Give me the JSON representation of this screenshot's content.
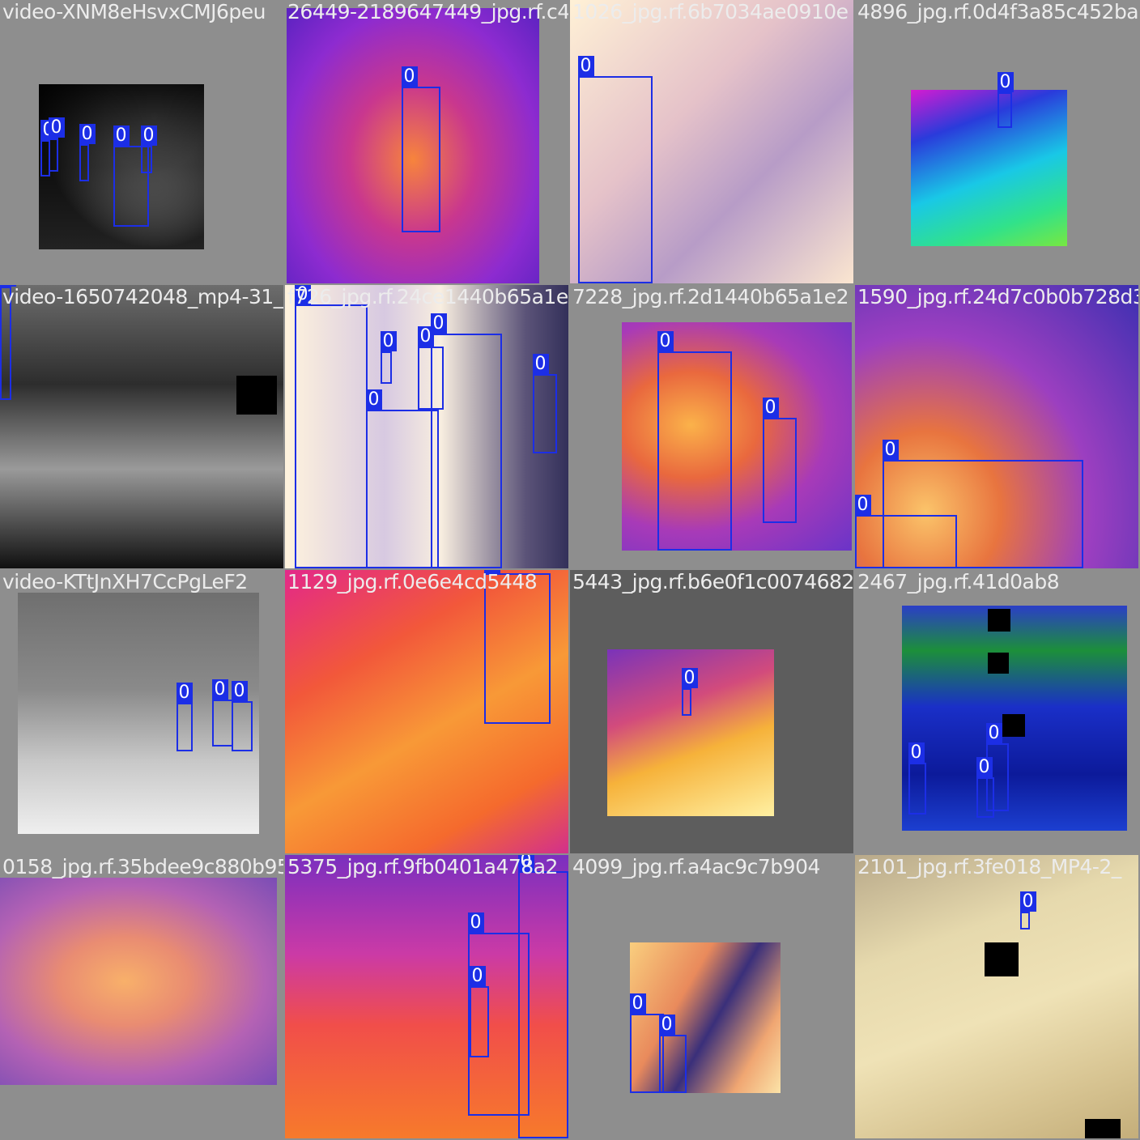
{
  "mosaic": {
    "box_label": "0",
    "box_color": "#1c2ee6",
    "tiles": [
      {
        "name": "video-XNM8eHsvxCMJ6peu",
        "file": "video-XNM8eHsvxCMJ6peu_frame-0189_jpg.rf...",
        "label": "video-XNM8eHsvxCMJ6peu"
      },
      {
        "name": "26449",
        "label": "26449-2189647449_jpg.rf.c4"
      },
      {
        "name": "1026",
        "label": "1026_jpg.rf.6b7034ae0910e"
      },
      {
        "name": "4896",
        "label": "4896_jpg.rf.0d4f3a85c452ba"
      },
      {
        "name": "video-1650742048",
        "label": "video-1650742048_mp4-31_"
      },
      {
        "name": "t726",
        "label": "f726_jpg.rf.24ce1440b65a1e"
      },
      {
        "name": "7228",
        "label": "7228_jpg.rf.2d1440b65a1e2"
      },
      {
        "name": "1590",
        "label": "1590_jpg.rf.24d7c0b0b728d3"
      },
      {
        "name": "video-KTtJnXH7CcPgLeF2",
        "label": "video-KTtJnXH7CcPgLeF2"
      },
      {
        "name": "1129",
        "label": "1129_jpg.rf.0e6e4cd5448"
      },
      {
        "name": "5443",
        "label": "5443_jpg.rf.b6e0f1c0074682"
      },
      {
        "name": "2467",
        "label": "2467_jpg.rf.41d0ab8"
      },
      {
        "name": "0158",
        "label": "0158_jpg.rf.35bdee9c880b95"
      },
      {
        "name": "5375",
        "label": "5375_jpg.rf.9fb0401a478a2"
      },
      {
        "name": "4099",
        "label": "4099_jpg.rf.a4ac9c7b904"
      },
      {
        "name": "2101",
        "label": "2101_jpg.rf.3fe018_MP4-2_"
      }
    ]
  }
}
